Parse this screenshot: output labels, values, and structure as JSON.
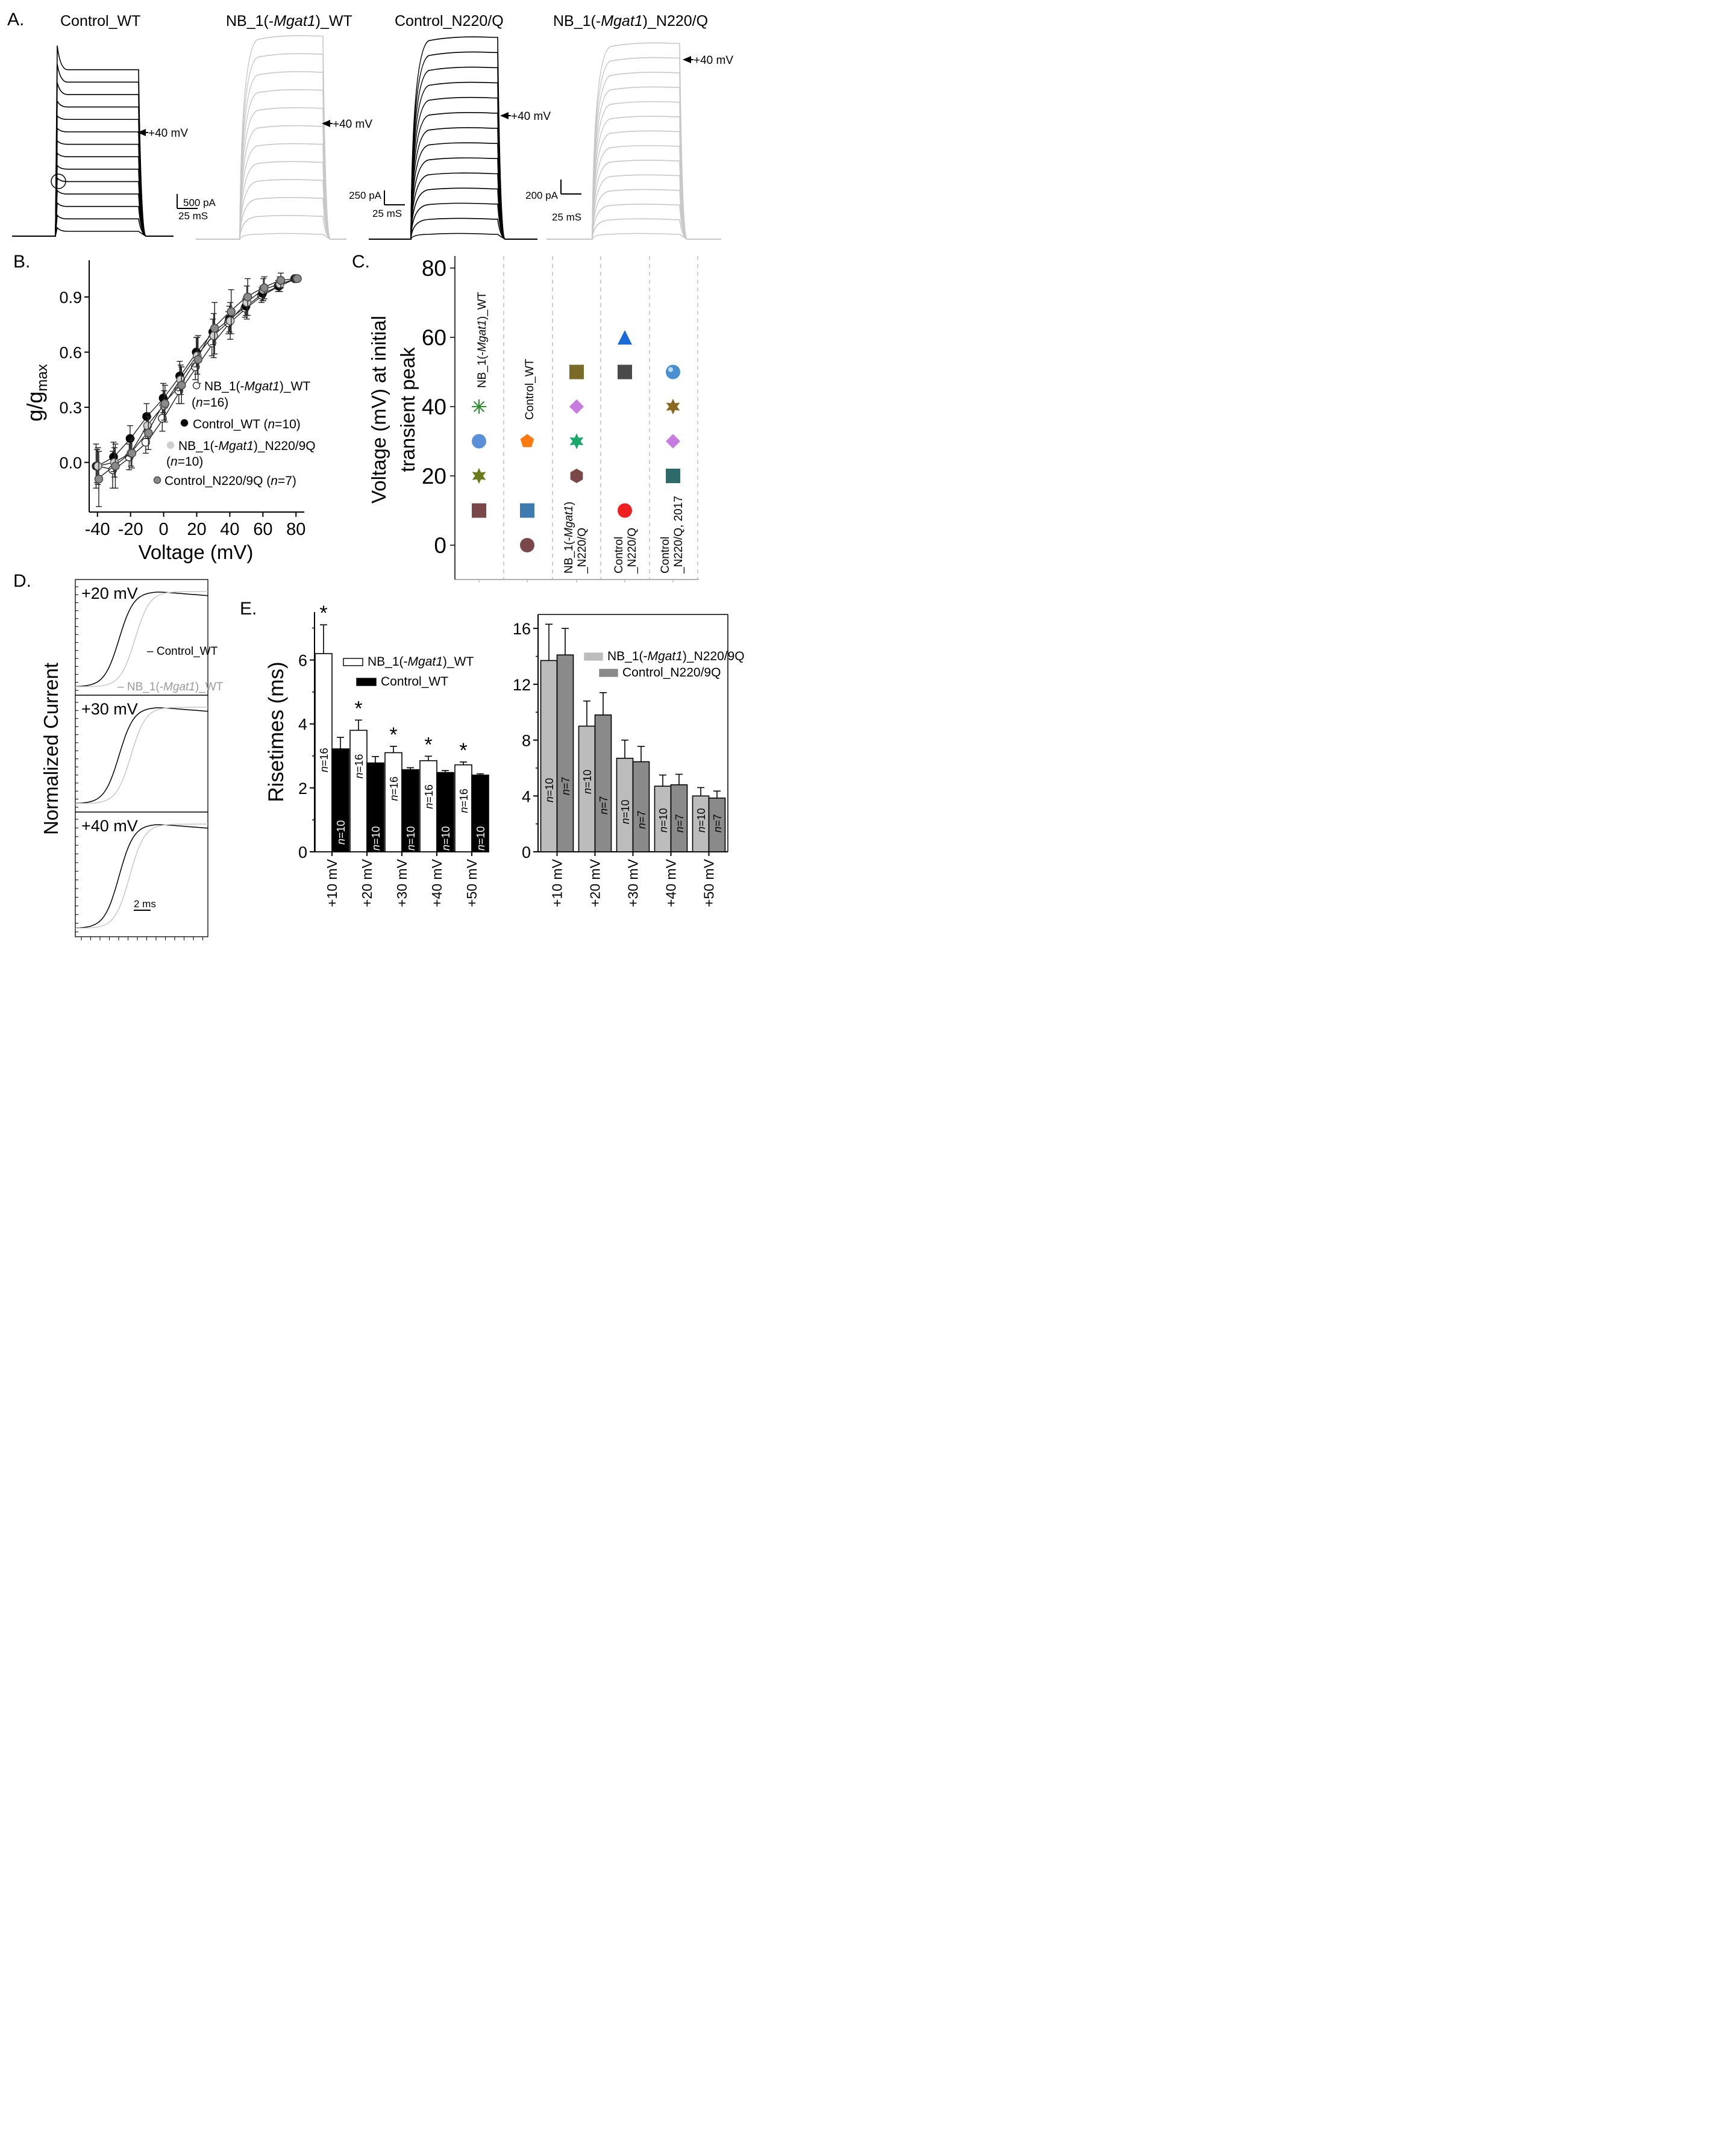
{
  "colors": {
    "black": "#000000",
    "gray": "#c8c8c8",
    "mid_gray": "#7a7a7a",
    "dark_gray": "#8a8a8a",
    "light_bar": "#bcbcbc",
    "dashed": "#b5b5b5"
  },
  "chart_data": [
    {
      "panel": "A",
      "type": "line",
      "description": "Whole-cell current traces, 4 recordings",
      "traces": [
        {
          "title": "Control_WT",
          "color": "black",
          "scale_current": "500 pA",
          "scale_time": "25 mS",
          "arrow_label": "+40 mV",
          "n_sweeps": 14,
          "transient": true
        },
        {
          "title_parts": [
            "NB_1(-",
            "Mgat1",
            ")_WT"
          ],
          "color": "gray",
          "arrow_label": "+40 mV",
          "n_sweeps": 12,
          "transient": false
        },
        {
          "title": "Control_N220/Q",
          "color": "black",
          "scale_current": "250 pA",
          "scale_time": "25 mS",
          "arrow_label": "+40 mV",
          "n_sweeps": 14,
          "transient": false
        },
        {
          "title_parts": [
            "NB_1(-",
            "Mgat1",
            ")_N220/Q"
          ],
          "color": "gray",
          "scale_current": "200 pA",
          "scale_time": "25 mS",
          "arrow_label": "+40 mV",
          "n_sweeps": 14,
          "transient": false
        }
      ]
    },
    {
      "panel": "B",
      "type": "line",
      "xlabel": "Voltage (mV)",
      "ylabel_main": "g/g",
      "ylabel_sub": "max",
      "xlim": [
        -45,
        85
      ],
      "ylim": [
        -0.27,
        1.1
      ],
      "xticks": [
        -40,
        -20,
        0,
        20,
        40,
        60,
        80
      ],
      "xtick_labels": [
        "-40",
        "-20",
        "0",
        "20",
        "40",
        "60",
        "80"
      ],
      "yticks": [
        0.0,
        0.3,
        0.6,
        0.9
      ],
      "ytick_labels": [
        "0.0",
        "0.3",
        "0.6",
        "0.9"
      ],
      "x": [
        -40,
        -30,
        -20,
        -10,
        0,
        10,
        20,
        30,
        40,
        50,
        60,
        70,
        80
      ],
      "series": [
        {
          "name": "NB_1(-Mgat1)_WT (n=16)",
          "marker": "open",
          "values": [
            -0.02,
            -0.04,
            0.03,
            0.11,
            0.24,
            0.39,
            0.52,
            0.65,
            0.76,
            0.84,
            0.91,
            0.96,
            1.0
          ],
          "err": [
            0.12,
            0.1,
            0.07,
            0.06,
            0.07,
            0.07,
            0.07,
            0.07,
            0.06,
            0.05,
            0.04,
            0.03,
            0.0
          ]
        },
        {
          "name": "Control_WT (n=10)",
          "marker": "black",
          "values": [
            -0.02,
            0.03,
            0.13,
            0.25,
            0.35,
            0.47,
            0.6,
            0.71,
            0.78,
            0.85,
            0.92,
            0.96,
            1.0
          ],
          "err": [
            0.09,
            0.08,
            0.07,
            0.07,
            0.08,
            0.08,
            0.08,
            0.07,
            0.07,
            0.05,
            0.04,
            0.03,
            0.0
          ]
        },
        {
          "name": "NB_1(-Mgat1)_N220/9Q (n=10)",
          "marker": "light",
          "values": [
            -0.02,
            0.0,
            0.05,
            0.2,
            0.31,
            0.45,
            0.58,
            0.69,
            0.77,
            0.87,
            0.94,
            0.97,
            1.0
          ],
          "err": [
            0.1,
            0.08,
            0.07,
            0.07,
            0.08,
            0.08,
            0.1,
            0.12,
            0.1,
            0.09,
            0.06,
            0.04,
            0.0
          ]
        },
        {
          "name": "Control_N220/9Q (n=7)",
          "marker": "mid",
          "values": [
            -0.09,
            -0.02,
            0.05,
            0.16,
            0.32,
            0.42,
            0.56,
            0.73,
            0.82,
            0.9,
            0.95,
            0.99,
            1.0
          ],
          "err": [
            0.15,
            0.12,
            0.08,
            0.09,
            0.1,
            0.1,
            0.13,
            0.14,
            0.12,
            0.1,
            0.06,
            0.04,
            0.0
          ]
        }
      ],
      "legend": [
        {
          "marker": "open",
          "parts": [
            {
              "t": "NB_1(-"
            },
            {
              "t": "Mgat1",
              "i": true
            },
            {
              "t": ")_WT"
            }
          ],
          "line2": [
            {
              "t": "("
            },
            {
              "t": "n",
              "i": true
            },
            {
              "t": "=16)"
            }
          ]
        },
        {
          "marker": "black",
          "parts": [
            {
              "t": "Control_WT ("
            },
            {
              "t": "n",
              "i": true
            },
            {
              "t": "=10)"
            }
          ]
        },
        {
          "marker": "light",
          "parts": [
            {
              "t": "NB_1(-"
            },
            {
              "t": "Mgat1",
              "i": true
            },
            {
              "t": ")_N220/9Q"
            }
          ],
          "line2": [
            {
              "t": "("
            },
            {
              "t": "n",
              "i": true
            },
            {
              "t": "=10)"
            }
          ]
        },
        {
          "marker": "mid",
          "parts": [
            {
              "t": "Control_N220/9Q ("
            },
            {
              "t": "n",
              "i": true
            },
            {
              "t": "=7)"
            }
          ]
        }
      ]
    },
    {
      "panel": "C",
      "type": "scatter",
      "ylabel_line1": "Voltage (mV) at initial",
      "ylabel_line2": "transient peak",
      "ylim": [
        -10,
        85
      ],
      "yticks": [
        0,
        20,
        40,
        60,
        80
      ],
      "ytick_labels": [
        "0",
        "20",
        "40",
        "60",
        "80"
      ],
      "groups": [
        {
          "label_parts": [
            "NB_1(-",
            "Mgat1",
            ")_WT"
          ],
          "points": [
            {
              "y": 40,
              "shape": "asterisk",
              "color": "#2e8b2e"
            },
            {
              "y": 30,
              "shape": "circle",
              "color": "#5b8fd8"
            },
            {
              "y": 20,
              "shape": "star",
              "color": "#6b7a1a"
            },
            {
              "y": 10,
              "shape": "square",
              "color": "#7a4848"
            }
          ]
        },
        {
          "label": "Control_WT",
          "points": [
            {
              "y": 30,
              "shape": "pentagon",
              "color": "#ff7a10"
            },
            {
              "y": 10,
              "shape": "square",
              "color": "#3d7ab0"
            },
            {
              "y": 0,
              "shape": "circle",
              "color": "#7a4848"
            }
          ]
        },
        {
          "label_lines": [
            [
              "NB_1(-",
              "Mgat1",
              ")"
            ],
            [
              "_N220/Q"
            ]
          ],
          "points": [
            {
              "y": 50,
              "shape": "square",
              "color": "#7a6a28"
            },
            {
              "y": 40,
              "shape": "diamond",
              "color": "#c77ae0"
            },
            {
              "y": 30,
              "shape": "star",
              "color": "#1aa86a"
            },
            {
              "y": 20,
              "shape": "hexagon",
              "color": "#7a4848"
            }
          ]
        },
        {
          "label_lines": [
            [
              "Control"
            ],
            [
              "_N220/Q"
            ]
          ],
          "points": [
            {
              "y": 60,
              "shape": "triangle",
              "color": "#1a6bd8"
            },
            {
              "y": 50,
              "shape": "square",
              "color": "#4a4a4a"
            },
            {
              "y": 10,
              "shape": "octagon",
              "color": "#f02020"
            }
          ]
        },
        {
          "label_lines": [
            [
              "Control"
            ],
            [
              "_N220/Q, 2017"
            ]
          ],
          "points": [
            {
              "y": 50,
              "shape": "sphere",
              "color": "#4a90d0"
            },
            {
              "y": 40,
              "shape": "star",
              "color": "#8a6a20"
            },
            {
              "y": 30,
              "shape": "diamond",
              "color": "#c77ae0"
            },
            {
              "y": 20,
              "shape": "square",
              "color": "#2e6a6a"
            }
          ]
        }
      ]
    },
    {
      "panel": "D",
      "type": "line",
      "ylabel": "Normalized Current",
      "scale_time": "2 ms",
      "subpanels": [
        {
          "label": "+20 mV",
          "shift": 0.12
        },
        {
          "label": "+30 mV",
          "shift": 0.09
        },
        {
          "label": "+40 mV",
          "shift": 0.08
        }
      ],
      "legend": [
        {
          "text": "Control_WT",
          "color": "black"
        },
        {
          "text_parts": [
            "NB_1(-",
            "Mgat1",
            ")_WT"
          ],
          "color": "gray"
        }
      ]
    },
    {
      "panel": "E-left",
      "type": "bar",
      "ylabel": "Risetimes (ms)",
      "ylim": [
        0,
        7.5
      ],
      "yticks": [
        0,
        2,
        4,
        6
      ],
      "ytick_labels": [
        "0",
        "2",
        "4",
        "6"
      ],
      "categories": [
        "+10 mV",
        "+20 mV",
        "+30 mV",
        "+40 mV",
        "+50 mV"
      ],
      "series": [
        {
          "name": "NB_1(-Mgat1)_WT",
          "fill": "#ffffff",
          "values": [
            6.2,
            3.8,
            3.1,
            2.85,
            2.72
          ],
          "err": [
            0.9,
            0.32,
            0.2,
            0.14,
            0.09
          ],
          "n": "16"
        },
        {
          "name": "Control_WT",
          "fill": "#000000",
          "values": [
            3.22,
            2.78,
            2.57,
            2.48,
            2.4
          ],
          "err": [
            0.36,
            0.2,
            0.06,
            0.06,
            0.04
          ],
          "n": "10"
        }
      ],
      "significance": [
        "*",
        "*",
        "*",
        "*",
        "*"
      ],
      "legend": [
        {
          "fill": "#ffffff",
          "parts": [
            {
              "t": "NB_1(-"
            },
            {
              "t": "Mgat1",
              "i": true
            },
            {
              "t": ")_WT"
            }
          ]
        },
        {
          "fill": "#000000",
          "parts": [
            {
              "t": "Control_WT"
            }
          ]
        }
      ]
    },
    {
      "panel": "E-right",
      "type": "bar",
      "ylim": [
        0,
        17
      ],
      "yticks": [
        0,
        4,
        8,
        12,
        16
      ],
      "ytick_labels": [
        "0",
        "4",
        "8",
        "12",
        "16"
      ],
      "categories": [
        "+10 mV",
        "+20 mV",
        "+30 mV",
        "+40 mV",
        "+50 mV"
      ],
      "series": [
        {
          "name": "NB_1(-Mgat1)_N220/9Q",
          "fill": "#bcbcbc",
          "values": [
            13.7,
            9.0,
            6.7,
            4.7,
            4.0
          ],
          "err": [
            2.6,
            1.8,
            1.3,
            0.8,
            0.6
          ],
          "n": "10"
        },
        {
          "name": "Control_N220/9Q",
          "fill": "#8a8a8a",
          "values": [
            14.1,
            9.8,
            6.45,
            4.8,
            3.85
          ],
          "err": [
            1.9,
            1.6,
            1.1,
            0.75,
            0.5
          ],
          "n": "7"
        }
      ],
      "legend": [
        {
          "fill": "#bcbcbc",
          "parts": [
            {
              "t": "NB_1(-"
            },
            {
              "t": "Mgat1",
              "i": true
            },
            {
              "t": ")_N220/9Q"
            }
          ]
        },
        {
          "fill": "#8a8a8a",
          "parts": [
            {
              "t": "Control_N220/9Q"
            }
          ]
        }
      ]
    }
  ],
  "panel_labels": {
    "a": "A.",
    "b": "B.",
    "c": "C.",
    "d": "D.",
    "e": "E."
  },
  "italic_n": "n"
}
